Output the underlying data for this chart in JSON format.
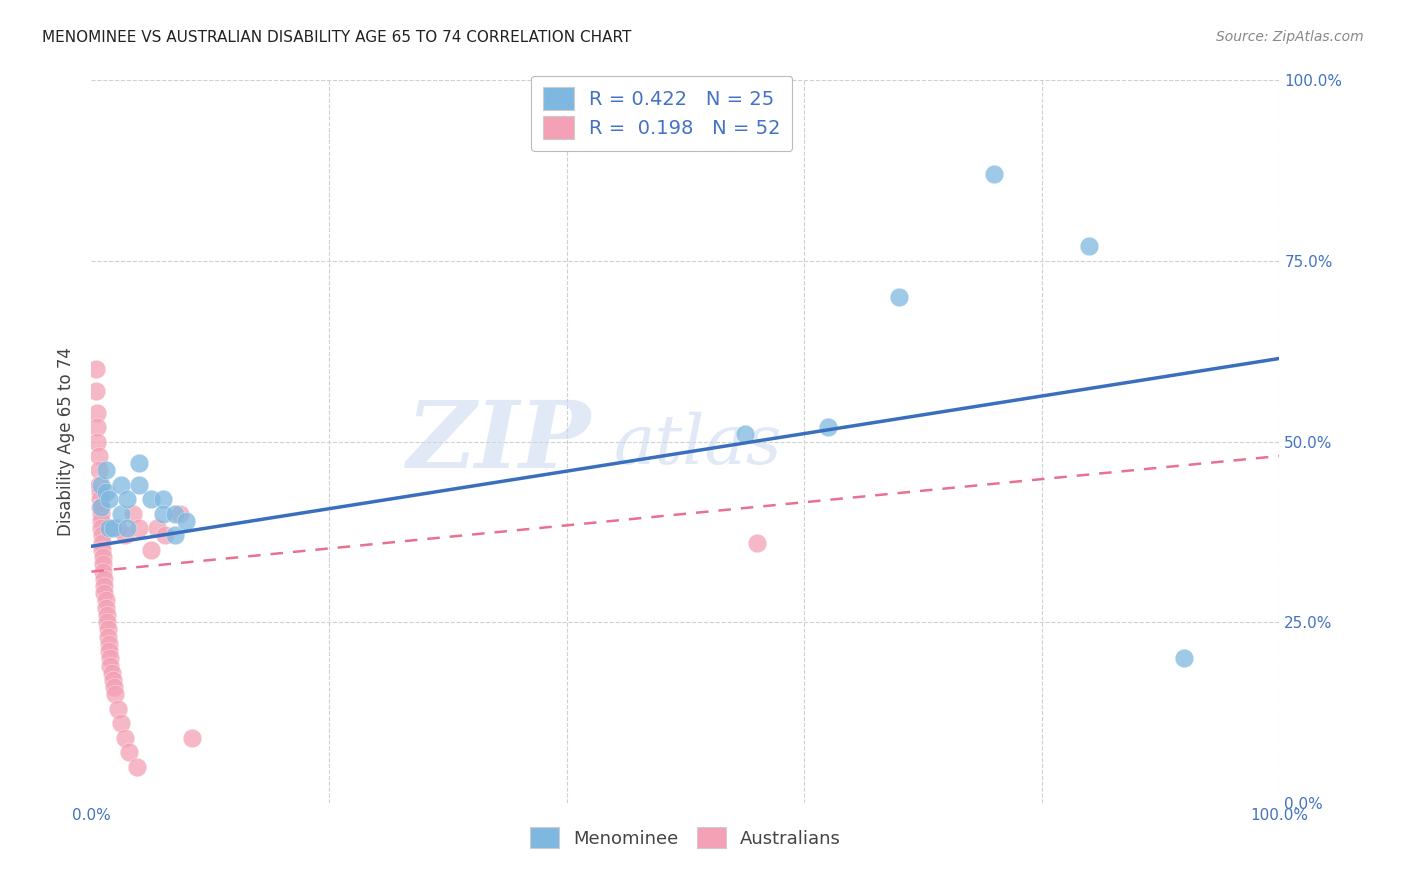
{
  "title": "MENOMINEE VS AUSTRALIAN DISABILITY AGE 65 TO 74 CORRELATION CHART",
  "source": "Source: ZipAtlas.com",
  "ylabel": "Disability Age 65 to 74",
  "xlim": [
    0,
    1
  ],
  "ylim": [
    0,
    1
  ],
  "watermark_zip": "ZIP",
  "watermark_atlas": "atlas",
  "background_color": "#ffffff",
  "grid_color": "#d0d0d0",
  "menominee_color": "#7eb8e0",
  "australians_color": "#f4a0b5",
  "trend_menominee_color": "#3a6fbe",
  "trend_australians_color": "#e87090",
  "legend_bottom": [
    "Menominee",
    "Australians"
  ],
  "menominee_R": 0.422,
  "menominee_N": 25,
  "australians_R": 0.198,
  "australians_N": 52,
  "menominee_trend": [
    0.0,
    1.0,
    0.355,
    0.615
  ],
  "australians_trend": [
    0.0,
    1.0,
    0.32,
    0.48
  ],
  "menominee_points": [
    [
      0.008,
      0.44
    ],
    [
      0.008,
      0.41
    ],
    [
      0.012,
      0.46
    ],
    [
      0.012,
      0.43
    ],
    [
      0.015,
      0.42
    ],
    [
      0.015,
      0.38
    ],
    [
      0.018,
      0.38
    ],
    [
      0.025,
      0.44
    ],
    [
      0.025,
      0.4
    ],
    [
      0.03,
      0.42
    ],
    [
      0.03,
      0.38
    ],
    [
      0.04,
      0.47
    ],
    [
      0.04,
      0.44
    ],
    [
      0.05,
      0.42
    ],
    [
      0.06,
      0.42
    ],
    [
      0.06,
      0.4
    ],
    [
      0.07,
      0.4
    ],
    [
      0.07,
      0.37
    ],
    [
      0.08,
      0.39
    ],
    [
      0.55,
      0.51
    ],
    [
      0.62,
      0.52
    ],
    [
      0.68,
      0.7
    ],
    [
      0.76,
      0.87
    ],
    [
      0.84,
      0.77
    ],
    [
      0.92,
      0.2
    ]
  ],
  "australians_points": [
    [
      0.004,
      0.6
    ],
    [
      0.004,
      0.57
    ],
    [
      0.005,
      0.54
    ],
    [
      0.005,
      0.52
    ],
    [
      0.005,
      0.5
    ],
    [
      0.006,
      0.48
    ],
    [
      0.006,
      0.46
    ],
    [
      0.006,
      0.44
    ],
    [
      0.007,
      0.43
    ],
    [
      0.007,
      0.42
    ],
    [
      0.007,
      0.41
    ],
    [
      0.008,
      0.4
    ],
    [
      0.008,
      0.39
    ],
    [
      0.008,
      0.38
    ],
    [
      0.009,
      0.37
    ],
    [
      0.009,
      0.36
    ],
    [
      0.009,
      0.35
    ],
    [
      0.01,
      0.34
    ],
    [
      0.01,
      0.33
    ],
    [
      0.01,
      0.32
    ],
    [
      0.011,
      0.31
    ],
    [
      0.011,
      0.3
    ],
    [
      0.011,
      0.29
    ],
    [
      0.012,
      0.28
    ],
    [
      0.012,
      0.27
    ],
    [
      0.013,
      0.26
    ],
    [
      0.013,
      0.25
    ],
    [
      0.014,
      0.24
    ],
    [
      0.014,
      0.23
    ],
    [
      0.015,
      0.22
    ],
    [
      0.015,
      0.21
    ],
    [
      0.016,
      0.2
    ],
    [
      0.016,
      0.19
    ],
    [
      0.017,
      0.18
    ],
    [
      0.018,
      0.17
    ],
    [
      0.019,
      0.16
    ],
    [
      0.02,
      0.15
    ],
    [
      0.022,
      0.13
    ],
    [
      0.025,
      0.11
    ],
    [
      0.028,
      0.09
    ],
    [
      0.032,
      0.07
    ],
    [
      0.038,
      0.05
    ],
    [
      0.022,
      0.38
    ],
    [
      0.028,
      0.37
    ],
    [
      0.035,
      0.4
    ],
    [
      0.04,
      0.38
    ],
    [
      0.05,
      0.35
    ],
    [
      0.055,
      0.38
    ],
    [
      0.062,
      0.37
    ],
    [
      0.075,
      0.4
    ],
    [
      0.085,
      0.09
    ],
    [
      0.56,
      0.36
    ]
  ]
}
